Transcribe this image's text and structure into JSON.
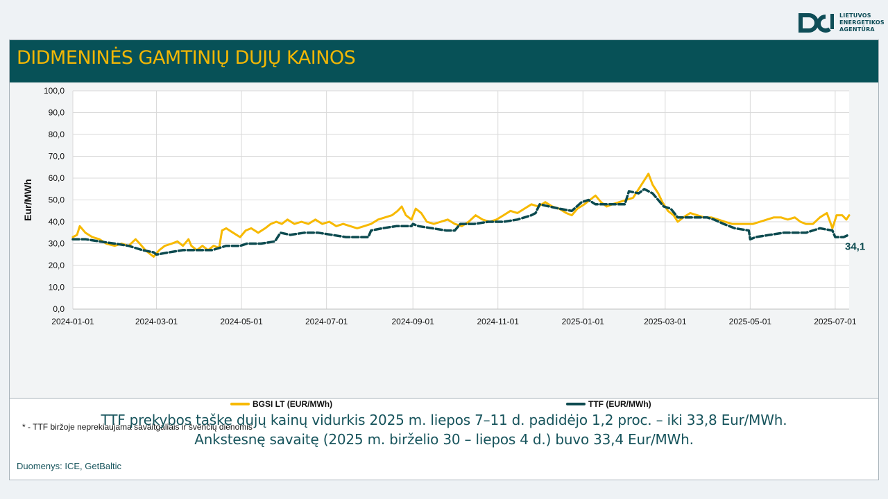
{
  "logo": {
    "line1": "LIETUVOS",
    "line2": "ENERGETIKOS",
    "line3": "AGENTŪRA",
    "icon": "lea-logo-icon"
  },
  "title": "DIDMENINĖS GAMTINIŲ DUJŲ KAINOS",
  "footnote": "* - TTF biržoje neprekiaujama savaitgaliais ir švenčių dienomis",
  "summary": {
    "line1": "TTF prekybos taške dujų kainų vidurkis 2025 m. liepos 7–11 d. padidėjo 1,2 proc. – iki 33,8 Eur/MWh.",
    "line2": "Ankstesnę savaitę (2025 m. birželio 30 – liepos 4 d.) buvo 33,4 Eur/MWh."
  },
  "source": "Duomenys: ICE, GetBaltic",
  "colors": {
    "bgsi": "#f7b900",
    "ttf": "#0c4a4f",
    "banner": "#075157",
    "title": "#f2b705"
  },
  "chart_data": {
    "type": "line",
    "ylabel": "Eur/MWh",
    "ylim": [
      0,
      100
    ],
    "yticks": [
      "0,0",
      "10,0",
      "20,0",
      "30,0",
      "40,0",
      "50,0",
      "60,0",
      "70,0",
      "80,0",
      "90,0",
      "100,0"
    ],
    "xlim": [
      "2024-01-01",
      "2025-07-11"
    ],
    "xticks": [
      "2024-01-01",
      "2024-03-01",
      "2024-05-01",
      "2024-07-01",
      "2024-09-01",
      "2024-11-01",
      "2025-01-01",
      "2025-03-01",
      "2025-05-01",
      "2025-07-01"
    ],
    "grid": true,
    "legend_position": "bottom",
    "last_label": "34,1",
    "series": [
      {
        "name": "BGSI LT (EUR/MWh)",
        "style": "solid",
        "points": [
          [
            "2024-01-01",
            33
          ],
          [
            "2024-01-04",
            34
          ],
          [
            "2024-01-06",
            38
          ],
          [
            "2024-01-10",
            35
          ],
          [
            "2024-01-15",
            33
          ],
          [
            "2024-01-20",
            32
          ],
          [
            "2024-01-25",
            30
          ],
          [
            "2024-01-31",
            29
          ],
          [
            "2024-02-05",
            30
          ],
          [
            "2024-02-10",
            29
          ],
          [
            "2024-02-15",
            32
          ],
          [
            "2024-02-18",
            30
          ],
          [
            "2024-02-22",
            27
          ],
          [
            "2024-02-26",
            25
          ],
          [
            "2024-02-28",
            24
          ],
          [
            "2024-03-03",
            27
          ],
          [
            "2024-03-07",
            29
          ],
          [
            "2024-03-12",
            30
          ],
          [
            "2024-03-16",
            31
          ],
          [
            "2024-03-20",
            29
          ],
          [
            "2024-03-24",
            32
          ],
          [
            "2024-03-26",
            29
          ],
          [
            "2024-03-30",
            27
          ],
          [
            "2024-04-03",
            29
          ],
          [
            "2024-04-07",
            27
          ],
          [
            "2024-04-11",
            29
          ],
          [
            "2024-04-15",
            28
          ],
          [
            "2024-04-17",
            36
          ],
          [
            "2024-04-20",
            37
          ],
          [
            "2024-04-25",
            35
          ],
          [
            "2024-04-30",
            33
          ],
          [
            "2024-05-04",
            36
          ],
          [
            "2024-05-08",
            37
          ],
          [
            "2024-05-13",
            35
          ],
          [
            "2024-05-18",
            37
          ],
          [
            "2024-05-22",
            39
          ],
          [
            "2024-05-26",
            40
          ],
          [
            "2024-05-30",
            39
          ],
          [
            "2024-06-03",
            41
          ],
          [
            "2024-06-08",
            39
          ],
          [
            "2024-06-13",
            40
          ],
          [
            "2024-06-18",
            39
          ],
          [
            "2024-06-23",
            41
          ],
          [
            "2024-06-28",
            39
          ],
          [
            "2024-07-03",
            40
          ],
          [
            "2024-07-08",
            38
          ],
          [
            "2024-07-13",
            39
          ],
          [
            "2024-07-18",
            38
          ],
          [
            "2024-07-23",
            37
          ],
          [
            "2024-07-28",
            38
          ],
          [
            "2024-08-02",
            39
          ],
          [
            "2024-08-07",
            41
          ],
          [
            "2024-08-12",
            42
          ],
          [
            "2024-08-17",
            43
          ],
          [
            "2024-08-21",
            45
          ],
          [
            "2024-08-24",
            47
          ],
          [
            "2024-08-27",
            43
          ],
          [
            "2024-08-31",
            41
          ],
          [
            "2024-09-03",
            46
          ],
          [
            "2024-09-07",
            44
          ],
          [
            "2024-09-11",
            40
          ],
          [
            "2024-09-16",
            39
          ],
          [
            "2024-09-21",
            40
          ],
          [
            "2024-09-26",
            41
          ],
          [
            "2024-10-01",
            39
          ],
          [
            "2024-10-06",
            38
          ],
          [
            "2024-10-11",
            40
          ],
          [
            "2024-10-16",
            43
          ],
          [
            "2024-10-21",
            41
          ],
          [
            "2024-10-26",
            40
          ],
          [
            "2024-10-31",
            41
          ],
          [
            "2024-11-05",
            43
          ],
          [
            "2024-11-10",
            45
          ],
          [
            "2024-11-15",
            44
          ],
          [
            "2024-11-20",
            46
          ],
          [
            "2024-11-25",
            48
          ],
          [
            "2024-11-30",
            47
          ],
          [
            "2024-12-05",
            49
          ],
          [
            "2024-12-10",
            47
          ],
          [
            "2024-12-15",
            46
          ],
          [
            "2024-12-20",
            44
          ],
          [
            "2024-12-24",
            43
          ],
          [
            "2024-12-28",
            46
          ],
          [
            "2025-01-02",
            48
          ],
          [
            "2025-01-06",
            50
          ],
          [
            "2025-01-10",
            52
          ],
          [
            "2025-01-14",
            49
          ],
          [
            "2025-01-18",
            47
          ],
          [
            "2025-01-22",
            48
          ],
          [
            "2025-01-27",
            49
          ],
          [
            "2025-02-01",
            50
          ],
          [
            "2025-02-06",
            51
          ],
          [
            "2025-02-10",
            55
          ],
          [
            "2025-02-14",
            59
          ],
          [
            "2025-02-17",
            62
          ],
          [
            "2025-02-20",
            57
          ],
          [
            "2025-02-24",
            53
          ],
          [
            "2025-02-27",
            49
          ],
          [
            "2025-03-03",
            45
          ],
          [
            "2025-03-07",
            43
          ],
          [
            "2025-03-10",
            40
          ],
          [
            "2025-03-14",
            42
          ],
          [
            "2025-03-19",
            44
          ],
          [
            "2025-03-24",
            43
          ],
          [
            "2025-03-29",
            42
          ],
          [
            "2025-04-03",
            42
          ],
          [
            "2025-04-08",
            41
          ],
          [
            "2025-04-13",
            40
          ],
          [
            "2025-04-18",
            39
          ],
          [
            "2025-04-23",
            39
          ],
          [
            "2025-04-28",
            39
          ],
          [
            "2025-05-03",
            39
          ],
          [
            "2025-05-08",
            40
          ],
          [
            "2025-05-13",
            41
          ],
          [
            "2025-05-18",
            42
          ],
          [
            "2025-05-23",
            42
          ],
          [
            "2025-05-28",
            41
          ],
          [
            "2025-06-02",
            42
          ],
          [
            "2025-06-06",
            40
          ],
          [
            "2025-06-10",
            39
          ],
          [
            "2025-06-15",
            39
          ],
          [
            "2025-06-20",
            42
          ],
          [
            "2025-06-25",
            44
          ],
          [
            "2025-06-29",
            37
          ],
          [
            "2025-07-02",
            43
          ],
          [
            "2025-07-06",
            43
          ],
          [
            "2025-07-09",
            41
          ],
          [
            "2025-07-11",
            43
          ]
        ]
      },
      {
        "name": "TTF (EUR/MWh)",
        "style": "dashed",
        "points": [
          [
            "2024-01-01",
            32
          ],
          [
            "2024-01-10",
            32
          ],
          [
            "2024-01-20",
            31
          ],
          [
            "2024-01-31",
            30
          ],
          [
            "2024-02-10",
            29
          ],
          [
            "2024-02-20",
            27
          ],
          [
            "2024-02-28",
            26
          ],
          [
            "2024-03-01",
            25
          ],
          [
            "2024-03-10",
            26
          ],
          [
            "2024-03-20",
            27
          ],
          [
            "2024-03-31",
            27
          ],
          [
            "2024-04-10",
            27
          ],
          [
            "2024-04-15",
            28
          ],
          [
            "2024-04-20",
            29
          ],
          [
            "2024-04-30",
            29
          ],
          [
            "2024-05-05",
            30
          ],
          [
            "2024-05-15",
            30
          ],
          [
            "2024-05-25",
            31
          ],
          [
            "2024-05-29",
            35
          ],
          [
            "2024-06-05",
            34
          ],
          [
            "2024-06-15",
            35
          ],
          [
            "2024-06-25",
            35
          ],
          [
            "2024-07-05",
            34
          ],
          [
            "2024-07-15",
            33
          ],
          [
            "2024-07-25",
            33
          ],
          [
            "2024-07-31",
            33
          ],
          [
            "2024-08-02",
            36
          ],
          [
            "2024-08-10",
            37
          ],
          [
            "2024-08-20",
            38
          ],
          [
            "2024-08-31",
            38
          ],
          [
            "2024-09-01",
            39
          ],
          [
            "2024-09-05",
            38
          ],
          [
            "2024-09-15",
            37
          ],
          [
            "2024-09-25",
            36
          ],
          [
            "2024-10-01",
            36
          ],
          [
            "2024-10-05",
            39
          ],
          [
            "2024-10-15",
            39
          ],
          [
            "2024-10-25",
            40
          ],
          [
            "2024-11-05",
            40
          ],
          [
            "2024-11-15",
            41
          ],
          [
            "2024-11-25",
            43
          ],
          [
            "2024-11-28",
            44
          ],
          [
            "2024-12-01",
            48
          ],
          [
            "2024-12-08",
            47
          ],
          [
            "2024-12-15",
            46
          ],
          [
            "2024-12-24",
            45
          ],
          [
            "2024-12-31",
            49
          ],
          [
            "2025-01-05",
            50
          ],
          [
            "2025-01-10",
            48
          ],
          [
            "2025-01-20",
            48
          ],
          [
            "2025-01-31",
            48
          ],
          [
            "2025-02-03",
            54
          ],
          [
            "2025-02-10",
            53
          ],
          [
            "2025-02-14",
            55
          ],
          [
            "2025-02-20",
            53
          ],
          [
            "2025-02-28",
            47
          ],
          [
            "2025-03-05",
            46
          ],
          [
            "2025-03-10",
            42
          ],
          [
            "2025-03-20",
            42
          ],
          [
            "2025-03-31",
            42
          ],
          [
            "2025-04-05",
            41
          ],
          [
            "2025-04-12",
            39
          ],
          [
            "2025-04-20",
            37
          ],
          [
            "2025-04-30",
            36
          ],
          [
            "2025-05-01",
            32
          ],
          [
            "2025-05-05",
            33
          ],
          [
            "2025-05-15",
            34
          ],
          [
            "2025-05-25",
            35
          ],
          [
            "2025-06-01",
            35
          ],
          [
            "2025-06-10",
            35
          ],
          [
            "2025-06-20",
            37
          ],
          [
            "2025-06-29",
            36
          ],
          [
            "2025-07-01",
            33
          ],
          [
            "2025-07-07",
            33
          ],
          [
            "2025-07-11",
            34.1
          ]
        ]
      }
    ]
  }
}
